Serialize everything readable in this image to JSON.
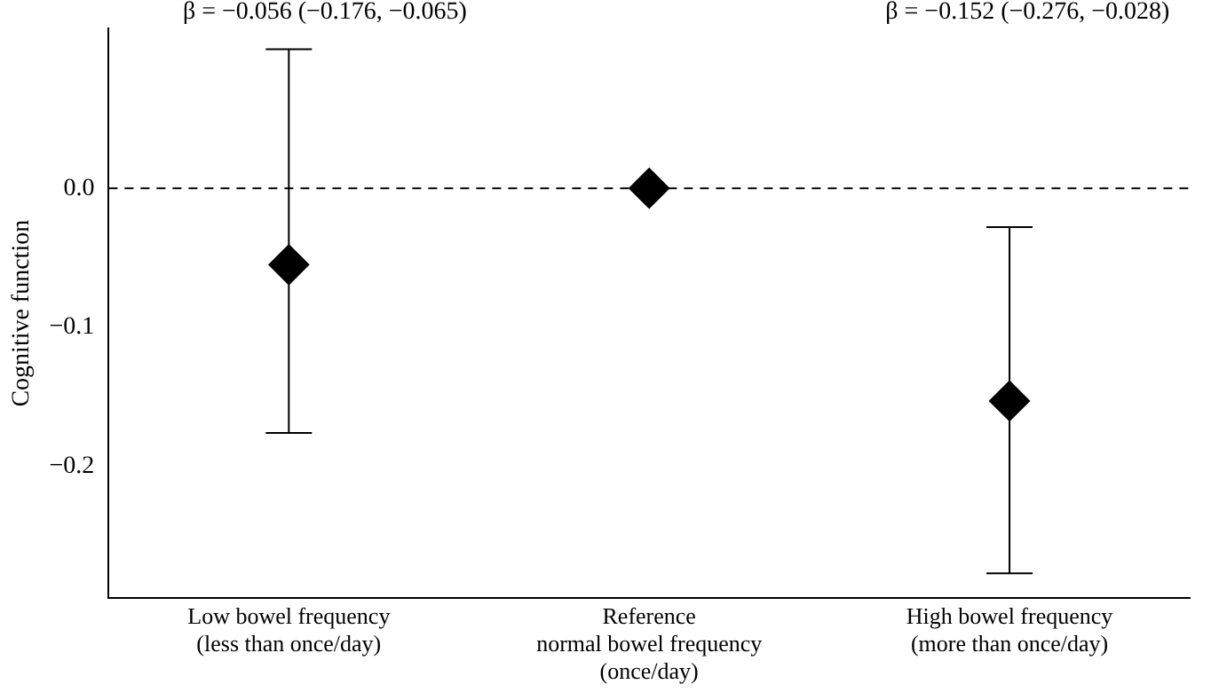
{
  "chart_data": {
    "type": "scatter",
    "ylabel": "Cognitive function",
    "categories": [
      "Low bowel frequency\n(less than once/day)",
      "Reference\nnormal bowel frequency\n(once/day)",
      "High bowel frequency\n(more than once/day)"
    ],
    "series": [
      {
        "color": "#000000",
        "values": [
          -0.055,
          0,
          -0.153
        ],
        "errors": [
          [
            -0.176,
            0.1
          ],
          null,
          [
            -0.277,
            -0.028
          ]
        ]
      }
    ],
    "ylim": [
      -0.295,
      0.115
    ],
    "yticks": [
      {
        "value": 0,
        "label": "0.0"
      },
      {
        "value": -0.1,
        "label": "−0.1"
      },
      {
        "value": -0.2,
        "label": "−0.2"
      }
    ],
    "ref_lines": [
      {
        "axis": "y",
        "value": 0,
        "color": "#000000",
        "line_style": "dashed"
      }
    ],
    "marker": "diamond",
    "grid": false,
    "legend": false,
    "annotations": [
      "β = −0.056 (−0.176, −0.065)",
      "β = −0.152 (−0.276, −0.028)"
    ]
  }
}
